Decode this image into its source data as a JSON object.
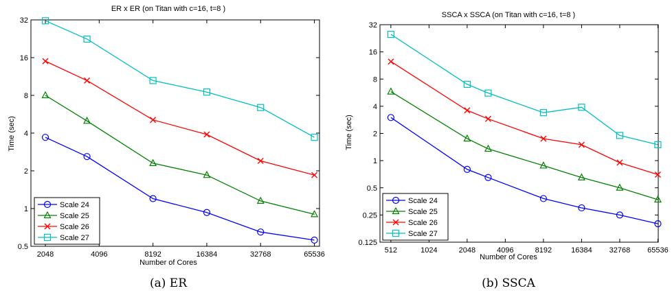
{
  "chart_data": [
    {
      "type": "line",
      "title": "ER x ER (on Titan with c=16, t=8 )",
      "xlabel": "Number of Cores",
      "ylabel": "Time (sec)",
      "x_scale": "log2",
      "y_scale": "log2",
      "xlim": [
        1700,
        70000
      ],
      "ylim": [
        0.5,
        32
      ],
      "xticks": [
        2048,
        4096,
        8192,
        16384,
        32768,
        65536
      ],
      "yticks": [
        0.5,
        1,
        2,
        4,
        8,
        16,
        32
      ],
      "ytick_labels": [
        "0.5",
        "1",
        "2",
        "4",
        "8",
        "16",
        "32"
      ],
      "x": [
        2048,
        3500,
        8192,
        16384,
        32768,
        65536
      ],
      "grid": false,
      "legend_position": "bottom-left",
      "series": [
        {
          "name": "Scale 24",
          "color": "#0000ff",
          "marker": "circle",
          "values": [
            3.7,
            2.6,
            1.2,
            0.93,
            0.65,
            0.56
          ]
        },
        {
          "name": "Scale 25",
          "color": "#008000",
          "marker": "triangle",
          "values": [
            8.0,
            5.0,
            2.3,
            1.85,
            1.15,
            0.9
          ]
        },
        {
          "name": "Scale 26",
          "color": "#ff0000",
          "marker": "x",
          "values": [
            15.0,
            10.5,
            5.1,
            3.9,
            2.4,
            1.85
          ]
        },
        {
          "name": "Scale 27",
          "color": "#00bfbf",
          "marker": "square",
          "values": [
            31.5,
            22.5,
            10.5,
            8.5,
            6.4,
            3.7
          ]
        }
      ],
      "caption": "(a) ER"
    },
    {
      "type": "line",
      "title": "SSCA x SSCA (on Titan with c=16, t=8 )",
      "xlabel": "Number of Cores",
      "ylabel": "Time (sec)",
      "x_scale": "log2",
      "y_scale": "log2",
      "xlim": [
        420,
        66000
      ],
      "ylim": [
        0.125,
        32
      ],
      "xticks": [
        512,
        1024,
        2048,
        4096,
        8192,
        16384,
        32768,
        65536
      ],
      "yticks": [
        0.125,
        0.25,
        0.5,
        1,
        2,
        4,
        8,
        16,
        32
      ],
      "ytick_labels": [
        "0.125",
        "0.25",
        "0.5",
        "1",
        "2",
        "4",
        "8",
        "16",
        "32"
      ],
      "x": [
        512,
        2048,
        3000,
        8192,
        16384,
        32768,
        65536
      ],
      "grid": false,
      "legend_position": "bottom-left",
      "series": [
        {
          "name": "Scale 24",
          "color": "#0000ff",
          "marker": "circle",
          "values": [
            3.0,
            0.8,
            0.65,
            0.38,
            0.3,
            0.25,
            0.2
          ]
        },
        {
          "name": "Scale 25",
          "color": "#008000",
          "marker": "triangle",
          "values": [
            5.8,
            1.75,
            1.35,
            0.88,
            0.65,
            0.5,
            0.37
          ]
        },
        {
          "name": "Scale 26",
          "color": "#ff0000",
          "marker": "x",
          "values": [
            12.5,
            3.6,
            2.9,
            1.75,
            1.5,
            0.95,
            0.7
          ]
        },
        {
          "name": "Scale 27",
          "color": "#00bfbf",
          "marker": "square",
          "values": [
            25.0,
            7.0,
            5.6,
            3.4,
            3.9,
            1.9,
            1.5
          ]
        }
      ],
      "caption": "(b) SSCA"
    }
  ]
}
